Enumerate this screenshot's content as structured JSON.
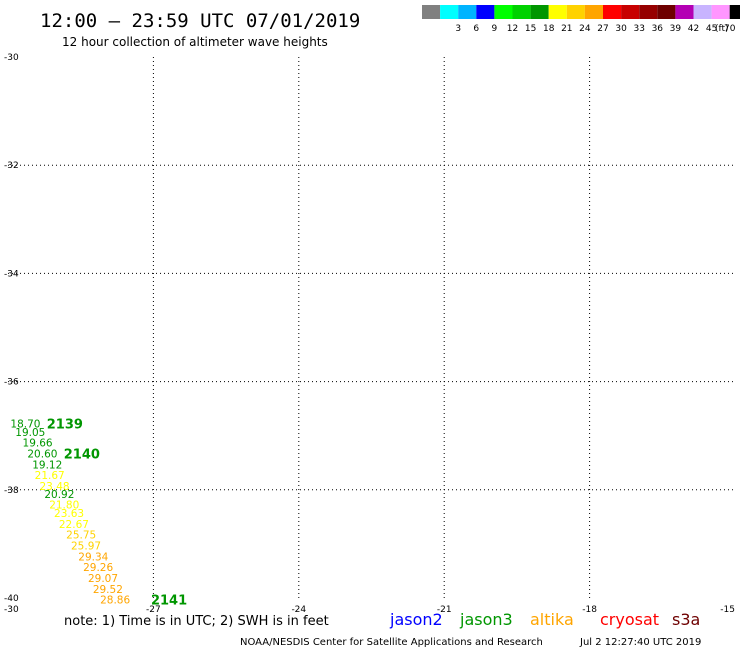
{
  "header": {
    "title": "12:00 – 23:59 UTC 07/01/2019",
    "subtitle": "12 hour collection of altimeter wave heights"
  },
  "color_scale": {
    "unit": "(ft)",
    "swatches": [
      {
        "label": "",
        "color": "#808080"
      },
      {
        "label": "3",
        "color": "#00ffff"
      },
      {
        "label": "6",
        "color": "#00b4ff"
      },
      {
        "label": "9",
        "color": "#0000ff"
      },
      {
        "label": "12",
        "color": "#00ff00"
      },
      {
        "label": "15",
        "color": "#00d200"
      },
      {
        "label": "18",
        "color": "#009600"
      },
      {
        "label": "21",
        "color": "#ffff00"
      },
      {
        "label": "24",
        "color": "#ffd200"
      },
      {
        "label": "27",
        "color": "#ffa500"
      },
      {
        "label": "30",
        "color": "#ff0000"
      },
      {
        "label": "33",
        "color": "#c80000"
      },
      {
        "label": "36",
        "color": "#960000"
      },
      {
        "label": "39",
        "color": "#6e0000"
      },
      {
        "label": "42",
        "color": "#b400b4"
      },
      {
        "label": "45",
        "color": "#c8b4ff"
      },
      {
        "label": "70",
        "color": "#ff96ff"
      },
      {
        "label": "",
        "color": "#000000"
      }
    ]
  },
  "chart_data": {
    "type": "scatter",
    "xlim": [
      -30,
      -15
    ],
    "ylim": [
      -40,
      -30
    ],
    "x_ticks": [
      {
        "value": -30,
        "label": "-30"
      },
      {
        "value": -27,
        "label": "-27"
      },
      {
        "value": -24,
        "label": "-24"
      },
      {
        "value": -21,
        "label": "-21"
      },
      {
        "value": -18,
        "label": "-18"
      },
      {
        "value": -15,
        "label": "-15"
      }
    ],
    "y_ticks": [
      {
        "value": -30,
        "label": "-30"
      },
      {
        "value": -32,
        "label": "-32"
      },
      {
        "value": -34,
        "label": "-34"
      },
      {
        "value": -36,
        "label": "-36"
      },
      {
        "value": -38,
        "label": "-38"
      },
      {
        "value": -40,
        "label": "-40"
      }
    ],
    "grid": true,
    "points": [
      {
        "x": -29.95,
        "y": -36.77,
        "value": "18.70",
        "color": "#009600"
      },
      {
        "x": -29.85,
        "y": -36.93,
        "value": "19.05",
        "color": "#009600"
      },
      {
        "x": -29.7,
        "y": -37.13,
        "value": "19.66",
        "color": "#009600"
      },
      {
        "x": -29.6,
        "y": -37.33,
        "value": "20.60",
        "color": "#009600"
      },
      {
        "x": -29.5,
        "y": -37.53,
        "value": "19.12",
        "color": "#009600"
      },
      {
        "x": -29.45,
        "y": -37.73,
        "value": "21.67",
        "color": "#ffff00"
      },
      {
        "x": -29.35,
        "y": -37.93,
        "value": "23.48",
        "color": "#ffff00"
      },
      {
        "x": -29.25,
        "y": -38.08,
        "value": "20.92",
        "color": "#009600"
      },
      {
        "x": -29.15,
        "y": -38.27,
        "value": "21.80",
        "color": "#ffff00"
      },
      {
        "x": -29.05,
        "y": -38.43,
        "value": "23.63",
        "color": "#ffff00"
      },
      {
        "x": -28.95,
        "y": -38.63,
        "value": "22.67",
        "color": "#ffff00"
      },
      {
        "x": -28.8,
        "y": -38.83,
        "value": "25.75",
        "color": "#ffd200"
      },
      {
        "x": -28.7,
        "y": -39.03,
        "value": "25.97",
        "color": "#ffd200"
      },
      {
        "x": -28.55,
        "y": -39.23,
        "value": "29.34",
        "color": "#ffa500"
      },
      {
        "x": -28.45,
        "y": -39.43,
        "value": "29.26",
        "color": "#ffa500"
      },
      {
        "x": -28.35,
        "y": -39.63,
        "value": "29.07",
        "color": "#ffa500"
      },
      {
        "x": -28.25,
        "y": -39.83,
        "value": "29.52",
        "color": "#ffa500"
      },
      {
        "x": -28.1,
        "y": -40.03,
        "value": "28.86",
        "color": "#ffa500"
      }
    ],
    "time_labels": [
      {
        "x": -29.2,
        "y": -36.77,
        "label": "2139",
        "color": "#009600"
      },
      {
        "x": -28.85,
        "y": -37.33,
        "label": "2140",
        "color": "#009600"
      },
      {
        "x": -27.05,
        "y": -40.03,
        "label": "2141",
        "color": "#009600"
      }
    ]
  },
  "footer": {
    "note": "note: 1) Time is in UTC; 2) SWH is in feet",
    "legend": [
      {
        "name": "jason2",
        "color": "#0000ff"
      },
      {
        "name": "jason3",
        "color": "#009600"
      },
      {
        "name": "altika",
        "color": "#ffa500"
      },
      {
        "name": "cryosat",
        "color": "#ff0000"
      },
      {
        "name": "s3a",
        "color": "#6e0000"
      }
    ],
    "credit": "NOAA/NESDIS Center for Satellite Applications and Research",
    "generated": "Jul  2 12:27:40 UTC 2019"
  }
}
